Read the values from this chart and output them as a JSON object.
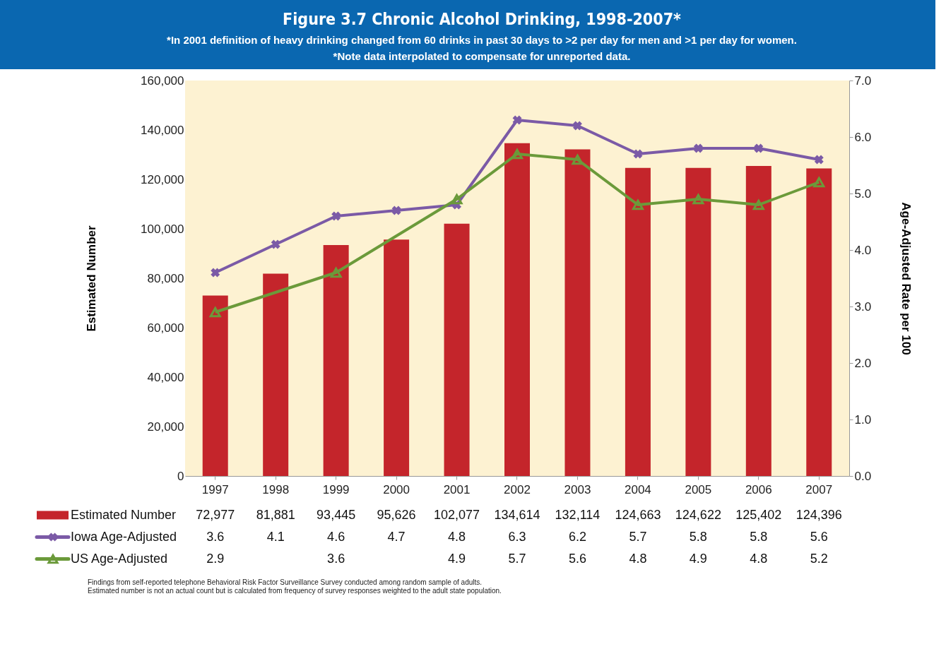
{
  "chart_data": {
    "type": "bar",
    "title": "Figure 3.7 Chronic Alcohol Drinking, 1998-2007*",
    "subtitle": "*In 2001 definition of heavy drinking changed from 60 drinks in past 30 days to >2 per day for men and >1 per day for women.\n*Note data interpolated to compensate for unreported data.",
    "ylabel": "Estimated Number",
    "y2label": "Age-Adjusted Rate per 100",
    "categories": [
      "1997",
      "1998",
      "1999",
      "2000",
      "2001",
      "2002",
      "2003",
      "2004",
      "2005",
      "2006",
      "2007"
    ],
    "series": [
      {
        "name": "Estimated Number",
        "color": "#c4252b",
        "values": [
          72977,
          81881,
          93445,
          95626,
          102077,
          134614,
          132114,
          124663,
          124622,
          125402,
          124396
        ],
        "value_labels": [
          "72,977",
          "81,881",
          "93,445",
          "95,626",
          "102,077",
          "134,614",
          "132,114",
          "124,663",
          "124,622",
          "125,402",
          "124,396"
        ]
      },
      {
        "name": "Iowa Age-Adjusted",
        "type": "line",
        "axis": "y2",
        "marker": "cross",
        "color": "#7b5aa6",
        "values": [
          3.6,
          4.1,
          4.6,
          4.7,
          4.8,
          6.3,
          6.2,
          5.7,
          5.8,
          5.8,
          5.6
        ],
        "value_labels": [
          "3.6",
          "4.1",
          "4.6",
          "4.7",
          "4.8",
          "6.3",
          "6.2",
          "5.7",
          "5.8",
          "5.8",
          "5.6"
        ]
      },
      {
        "name": "US Age-Adjusted",
        "type": "line",
        "axis": "y2",
        "marker": "triangle",
        "color": "#6b9a3a",
        "values": [
          2.9,
          null,
          3.6,
          null,
          4.9,
          5.7,
          5.6,
          4.8,
          4.9,
          4.8,
          5.2
        ],
        "value_labels": [
          "2.9",
          null,
          "3.6",
          null,
          "4.9",
          "5.7",
          "5.6",
          "4.8",
          "4.9",
          "4.8",
          "5.2"
        ]
      }
    ],
    "ylim": [
      0,
      160000
    ],
    "yticks": [
      0,
      {
        "value": 20000,
        "label": "20,000"
      },
      {
        "value": 40000,
        "label": "40,000"
      },
      {
        "value": 60000,
        "label": "60,000"
      },
      {
        "value": 80000,
        "label": "80,000"
      },
      {
        "value": 100000,
        "label": "100,000"
      },
      {
        "value": 120000,
        "label": "120,000"
      },
      {
        "value": 140000,
        "label": "140,000"
      },
      {
        "value": 160000,
        "label": "160,000"
      }
    ],
    "y2lim": [
      0,
      7
    ],
    "y2ticks": [
      {
        "value": 0,
        "label": "0.0"
      },
      {
        "value": 1,
        "label": "1.0"
      },
      {
        "value": 2,
        "label": "2.0"
      },
      {
        "value": 3,
        "label": "3.0"
      },
      {
        "value": 4,
        "label": "4.0"
      },
      {
        "value": 5,
        "label": "5.0"
      },
      {
        "value": 6,
        "label": "6.0"
      },
      {
        "value": 7,
        "label": "7.0"
      }
    ],
    "grid": false,
    "legend": "bottom",
    "annotations": [
      "Findings from self-reported telephone Behavioral Risk Factor Surveillance Survey conducted among random sample of adults.",
      "Estimated number is not an actual count but is calculated from frequency of survey responses weighted to the adult state population."
    ]
  }
}
